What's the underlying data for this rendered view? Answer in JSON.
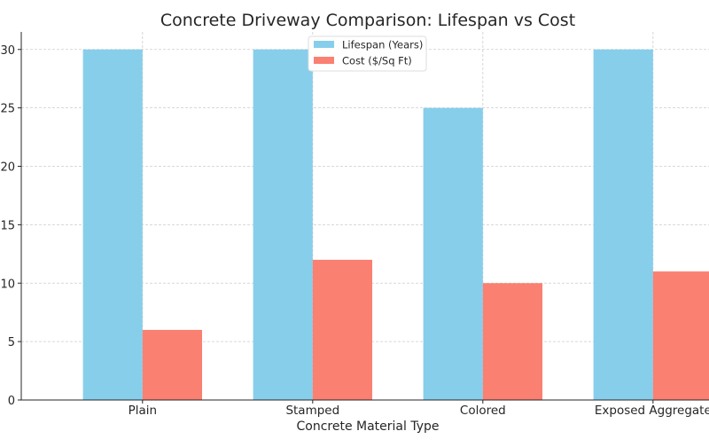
{
  "chart_data": {
    "type": "bar",
    "title": "Concrete Driveway Comparison: Lifespan vs Cost",
    "xlabel": "Concrete Material Type",
    "ylabel": "",
    "categories": [
      "Plain",
      "Stamped",
      "Colored",
      "Exposed Aggregate"
    ],
    "series": [
      {
        "name": "Lifespan (Years)",
        "values": [
          30,
          30,
          25,
          30
        ],
        "color": "#87CEEB"
      },
      {
        "name": "Cost ($/Sq Ft)",
        "values": [
          6,
          12,
          10,
          11
        ],
        "color": "#FA8072"
      }
    ],
    "ylim": [
      0,
      31.5
    ],
    "yticks": [
      0,
      5,
      10,
      15,
      20,
      25,
      30
    ],
    "grid": true,
    "legend": "top-center"
  }
}
